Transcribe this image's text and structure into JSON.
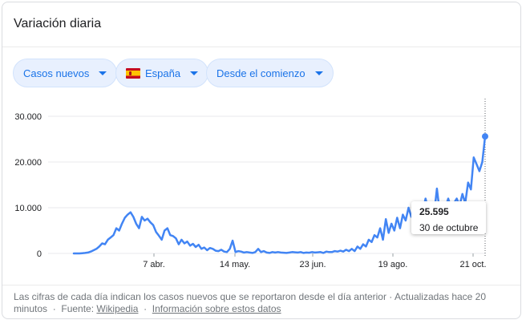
{
  "card": {
    "title": "Variación diaria"
  },
  "filters": {
    "metric": "Casos nuevos",
    "country": "España",
    "range": "Desde el comienzo"
  },
  "tooltip": {
    "value": "25.595",
    "date": "30 de octubre"
  },
  "footer": {
    "note": "Las cifras de cada día indican los casos nuevos que se reportaron desde el día anterior · Actualizadas hace 20 minutos",
    "source_label": "Fuente:",
    "source_link": "Wikipedia",
    "info_link": "Información sobre estos datos"
  },
  "colors": {
    "line": "#4285f4",
    "grid": "#e8eaed",
    "chip_bg": "#e8f0fe",
    "chip_text": "#1a73e8"
  },
  "chart_data": {
    "type": "line",
    "ylim": [
      0,
      30000
    ],
    "grid": true,
    "yticks": [
      0,
      10000,
      20000,
      30000
    ],
    "ytick_labels": [
      "0",
      "10.000",
      "20.000",
      "30.000"
    ],
    "xtick_labels": [
      "7 abr.",
      "14 may.",
      "23 jun.",
      "19 ago.",
      "21 oct."
    ],
    "series": [
      {
        "values": [
          0,
          0,
          0,
          50,
          100,
          200,
          400,
          700,
          1000,
          1500,
          2200,
          2000,
          3000,
          3500,
          4000,
          5500,
          5000,
          6500,
          7800,
          8500,
          9000,
          8000,
          6500,
          5500,
          8000,
          7200,
          7600,
          6800,
          6200,
          4700,
          3900,
          3000,
          5000,
          5500,
          4000,
          3800,
          3300,
          2000,
          3000,
          2200,
          2600,
          1700,
          2100,
          1400,
          1900,
          1000,
          1300,
          700,
          1200,
          1000,
          600,
          500,
          800,
          400,
          300,
          1000,
          2800,
          300,
          500,
          400,
          200,
          300,
          200,
          100,
          300,
          1000,
          300,
          500,
          200,
          100,
          300,
          200,
          300,
          200,
          150,
          100,
          200,
          300,
          250,
          200,
          300,
          100,
          200,
          150,
          300,
          200,
          250,
          300,
          100,
          400,
          300,
          300,
          500,
          400,
          600,
          400,
          800,
          500,
          1000,
          500,
          1500,
          1000,
          2000,
          1500,
          3000,
          2500,
          4000,
          3500,
          5500,
          3000,
          7500,
          4500,
          6500,
          5000,
          7800,
          5500,
          8500,
          7200,
          10000,
          8000,
          9500,
          8500,
          10500,
          9000,
          12000,
          9500,
          11000,
          8500,
          14200,
          9000,
          11000,
          10000,
          12000,
          10000,
          11000,
          12000,
          10500,
          13000,
          11000,
          15500,
          14000,
          21000,
          19500,
          18000,
          20000,
          25595
        ]
      }
    ]
  }
}
